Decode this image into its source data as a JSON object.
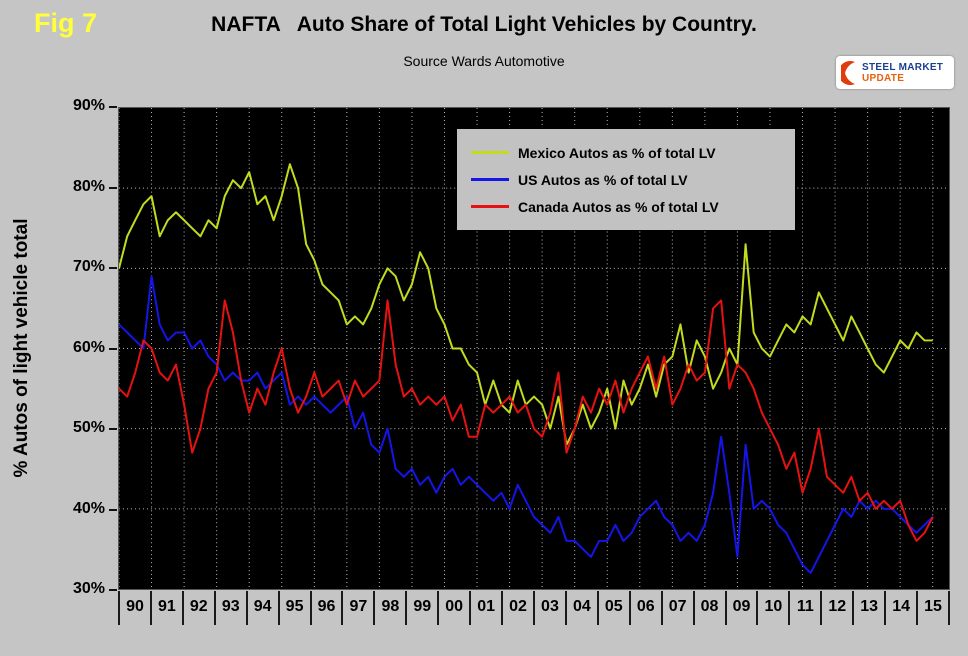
{
  "fig_label": "Fig 7",
  "title": "NAFTA   Auto Share of Total Light Vehicles by Country.",
  "subtitle": "Source Wards Automotive",
  "logo": {
    "words": [
      "STEEL",
      "MARKET",
      "UPDATE"
    ]
  },
  "y_axis_title": "% Autos of light vehicle total",
  "colors": {
    "page_bg": "#c5c5c5",
    "plot_bg": "#000000",
    "grid": "#b8b8b8",
    "fig_label": "#ffff3c",
    "legend_bg": "#c2c2c2",
    "mexico": "#c3db1f",
    "us": "#1515e8",
    "canada": "#e61212"
  },
  "chart_data": {
    "type": "line",
    "title": "NAFTA   Auto Share of Total Light Vehicles by Country.",
    "subtitle": "Source Wards Automotive",
    "xlabel": "",
    "ylabel": "% Autos of light vehicle total",
    "ylim": [
      30,
      90
    ],
    "xlim": [
      1990,
      2015.5
    ],
    "x_start": 1990,
    "x_step": 0.25,
    "grid": true,
    "legend_position": "top-center-inside",
    "y_tick_labels": [
      "90%",
      "80%",
      "70%",
      "60%",
      "50%",
      "40%",
      "30%"
    ],
    "x_tick_labels": [
      "90",
      "91",
      "92",
      "93",
      "94",
      "95",
      "96",
      "97",
      "98",
      "99",
      "00",
      "01",
      "02",
      "03",
      "04",
      "05",
      "06",
      "07",
      "08",
      "09",
      "10",
      "11",
      "12",
      "13",
      "14",
      "15"
    ],
    "series": [
      {
        "name": "Mexico Autos as % of total LV",
        "color": "#c3db1f",
        "values": [
          70,
          74,
          76,
          78,
          79,
          74,
          76,
          77,
          76,
          75,
          74,
          76,
          75,
          79,
          81,
          80,
          82,
          78,
          79,
          76,
          79,
          83,
          80,
          73,
          71,
          68,
          67,
          66,
          63,
          64,
          63,
          65,
          68,
          70,
          69,
          66,
          68,
          72,
          70,
          65,
          63,
          60,
          60,
          58,
          57,
          53,
          56,
          53,
          52,
          56,
          53,
          54,
          53,
          50,
          54,
          48,
          50,
          53,
          50,
          52,
          55,
          50,
          56,
          53,
          55,
          58,
          54,
          58,
          59,
          63,
          57,
          61,
          59,
          55,
          57,
          60,
          58,
          73,
          62,
          60,
          59,
          61,
          63,
          62,
          64,
          63,
          67,
          65,
          63,
          61,
          64,
          62,
          60,
          58,
          57,
          59,
          61,
          60,
          62,
          61,
          61
        ]
      },
      {
        "name": "US Autos as % of total LV",
        "color": "#1515e8",
        "values": [
          63,
          62,
          61,
          60,
          69,
          63,
          61,
          62,
          62,
          60,
          61,
          59,
          58,
          56,
          57,
          56,
          56,
          57,
          55,
          56,
          57,
          53,
          54,
          53,
          54,
          53,
          52,
          53,
          54,
          50,
          52,
          48,
          47,
          50,
          45,
          44,
          45,
          43,
          44,
          42,
          44,
          45,
          43,
          44,
          43,
          42,
          41,
          42,
          40,
          43,
          41,
          39,
          38,
          37,
          39,
          36,
          36,
          35,
          34,
          36,
          36,
          38,
          36,
          37,
          39,
          40,
          41,
          39,
          38,
          36,
          37,
          36,
          38,
          42,
          49,
          42,
          34,
          48,
          40,
          41,
          40,
          38,
          37,
          35,
          33,
          32,
          34,
          36,
          38,
          40,
          39,
          41,
          40,
          41,
          40,
          40,
          39,
          38,
          37,
          38,
          39
        ]
      },
      {
        "name": "Canada Autos as % of total LV",
        "color": "#e61212",
        "values": [
          55,
          54,
          57,
          61,
          60,
          57,
          56,
          58,
          53,
          47,
          50,
          55,
          57,
          66,
          62,
          56,
          52,
          55,
          53,
          57,
          60,
          55,
          52,
          54,
          57,
          54,
          55,
          56,
          53,
          56,
          54,
          55,
          56,
          66,
          58,
          54,
          55,
          53,
          54,
          53,
          54,
          51,
          53,
          49,
          49,
          53,
          52,
          53,
          54,
          52,
          53,
          50,
          49,
          52,
          57,
          47,
          50,
          54,
          52,
          55,
          53,
          56,
          52,
          55,
          57,
          59,
          55,
          59,
          53,
          55,
          58,
          56,
          57,
          65,
          66,
          55,
          58,
          57,
          55,
          52,
          50,
          48,
          45,
          47,
          42,
          45,
          50,
          44,
          43,
          42,
          44,
          41,
          42,
          40,
          41,
          40,
          41,
          38,
          36,
          37,
          39
        ]
      }
    ]
  }
}
